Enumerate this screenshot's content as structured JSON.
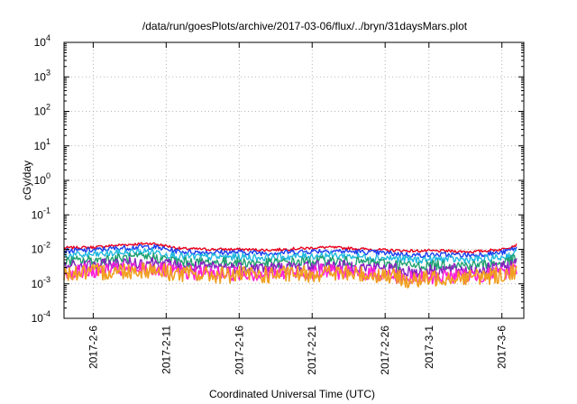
{
  "chart_data": {
    "type": "line",
    "title": "/data/run/goesPlots/archive/2017-03-06/flux/../bryn/31daysMars.plot",
    "xlabel": "Coordinated Universal Time (UTC)",
    "ylabel": "cGy/day",
    "y_scale": "log",
    "ylim": [
      0.0001,
      10000
    ],
    "xlim": [
      "2017-02-04T00:00",
      "2017-03-07T12:00"
    ],
    "grid": true,
    "y_ticks": [
      {
        "value": 0.0001,
        "base": "10",
        "exp": "-4"
      },
      {
        "value": 0.001,
        "base": "10",
        "exp": "-3"
      },
      {
        "value": 0.01,
        "base": "10",
        "exp": "-2"
      },
      {
        "value": 0.1,
        "base": "10",
        "exp": "-1"
      },
      {
        "value": 1,
        "base": "10",
        "exp": "0"
      },
      {
        "value": 10,
        "base": "10",
        "exp": "1"
      },
      {
        "value": 100,
        "base": "10",
        "exp": "2"
      },
      {
        "value": 1000,
        "base": "10",
        "exp": "3"
      },
      {
        "value": 10000,
        "base": "10",
        "exp": "4"
      }
    ],
    "x_ticks": [
      {
        "value": "2017-02-06",
        "label": "2017-2-6"
      },
      {
        "value": "2017-02-11",
        "label": "2017-2-11"
      },
      {
        "value": "2017-02-16",
        "label": "2017-2-16"
      },
      {
        "value": "2017-02-21",
        "label": "2017-2-21"
      },
      {
        "value": "2017-02-26",
        "label": "2017-2-26"
      },
      {
        "value": "2017-03-01",
        "label": "2017-3-1"
      },
      {
        "value": "2017-03-06",
        "label": "2017-3-6"
      }
    ],
    "series": [
      {
        "color": "#e8001c",
        "x": [
          "2017-02-04",
          "2017-02-06",
          "2017-02-08",
          "2017-02-10",
          "2017-02-12",
          "2017-02-14",
          "2017-02-16",
          "2017-02-18",
          "2017-02-20",
          "2017-02-22",
          "2017-02-24",
          "2017-02-26",
          "2017-02-28",
          "2017-03-02",
          "2017-03-04",
          "2017-03-06",
          "2017-03-07"
        ],
        "values": [
          0.011,
          0.0115,
          0.0135,
          0.015,
          0.0105,
          0.01,
          0.01,
          0.0095,
          0.0105,
          0.0115,
          0.0105,
          0.0095,
          0.009,
          0.009,
          0.0085,
          0.01,
          0.0135
        ]
      },
      {
        "color": "#1a3ef0",
        "x": [
          "2017-02-04",
          "2017-02-06",
          "2017-02-08",
          "2017-02-10",
          "2017-02-12",
          "2017-02-14",
          "2017-02-16",
          "2017-02-18",
          "2017-02-20",
          "2017-02-22",
          "2017-02-24",
          "2017-02-26",
          "2017-02-28",
          "2017-03-02",
          "2017-03-04",
          "2017-03-06",
          "2017-03-07"
        ],
        "values": [
          0.009,
          0.0095,
          0.011,
          0.012,
          0.0085,
          0.0082,
          0.0082,
          0.0078,
          0.0085,
          0.0092,
          0.0085,
          0.0078,
          0.0068,
          0.007,
          0.0068,
          0.008,
          0.011
        ]
      },
      {
        "color": "#1fb8e0",
        "x": [
          "2017-02-04",
          "2017-02-06",
          "2017-02-08",
          "2017-02-10",
          "2017-02-12",
          "2017-02-14",
          "2017-02-16",
          "2017-02-18",
          "2017-02-20",
          "2017-02-22",
          "2017-02-24",
          "2017-02-26",
          "2017-02-28",
          "2017-03-02",
          "2017-03-04",
          "2017-03-06",
          "2017-03-07"
        ],
        "values": [
          0.0065,
          0.007,
          0.008,
          0.0088,
          0.0062,
          0.006,
          0.006,
          0.0057,
          0.0062,
          0.0068,
          0.0062,
          0.0057,
          0.005,
          0.0052,
          0.005,
          0.0058,
          0.008
        ]
      },
      {
        "color": "#20a070",
        "x": [
          "2017-02-04",
          "2017-02-06",
          "2017-02-08",
          "2017-02-10",
          "2017-02-12",
          "2017-02-14",
          "2017-02-16",
          "2017-02-18",
          "2017-02-20",
          "2017-02-22",
          "2017-02-24",
          "2017-02-26",
          "2017-02-28",
          "2017-03-02",
          "2017-03-04",
          "2017-03-06",
          "2017-03-07"
        ],
        "values": [
          0.0045,
          0.0048,
          0.0055,
          0.006,
          0.0043,
          0.0042,
          0.0042,
          0.004,
          0.0043,
          0.0047,
          0.0043,
          0.004,
          0.0033,
          0.0036,
          0.0035,
          0.004,
          0.0055
        ]
      },
      {
        "color": "#8a1fc0",
        "x": [
          "2017-02-04",
          "2017-02-06",
          "2017-02-08",
          "2017-02-10",
          "2017-02-12",
          "2017-02-14",
          "2017-02-16",
          "2017-02-18",
          "2017-02-20",
          "2017-02-22",
          "2017-02-24",
          "2017-02-26",
          "2017-02-28",
          "2017-03-02",
          "2017-03-04",
          "2017-03-06",
          "2017-03-07"
        ],
        "values": [
          0.0032,
          0.0034,
          0.0039,
          0.0043,
          0.0031,
          0.003,
          0.003,
          0.0029,
          0.0031,
          0.0034,
          0.0031,
          0.0029,
          0.0022,
          0.0026,
          0.0025,
          0.0029,
          0.004
        ]
      },
      {
        "color": "#ff20d8",
        "x": [
          "2017-02-04",
          "2017-02-06",
          "2017-02-08",
          "2017-02-10",
          "2017-02-12",
          "2017-02-14",
          "2017-02-16",
          "2017-02-18",
          "2017-02-20",
          "2017-02-22",
          "2017-02-24",
          "2017-02-26",
          "2017-02-28",
          "2017-03-02",
          "2017-03-04",
          "2017-03-06",
          "2017-03-07"
        ],
        "values": [
          0.0022,
          0.0023,
          0.0026,
          0.0028,
          0.0021,
          0.002,
          0.002,
          0.0019,
          0.0021,
          0.0023,
          0.0021,
          0.0019,
          0.0013,
          0.0017,
          0.0017,
          0.002,
          0.0028
        ]
      },
      {
        "color": "#f0a020",
        "x": [
          "2017-02-04",
          "2017-02-06",
          "2017-02-08",
          "2017-02-10",
          "2017-02-12",
          "2017-02-14",
          "2017-02-16",
          "2017-02-18",
          "2017-02-20",
          "2017-02-22",
          "2017-02-24",
          "2017-02-26",
          "2017-02-28",
          "2017-03-02",
          "2017-03-04",
          "2017-03-06",
          "2017-03-07"
        ],
        "values": [
          0.002,
          0.0021,
          0.0024,
          0.0026,
          0.0019,
          0.0018,
          0.0018,
          0.0018,
          0.0019,
          0.0021,
          0.0019,
          0.0018,
          0.0012,
          0.0016,
          0.0016,
          0.0018,
          0.0025
        ]
      }
    ]
  }
}
